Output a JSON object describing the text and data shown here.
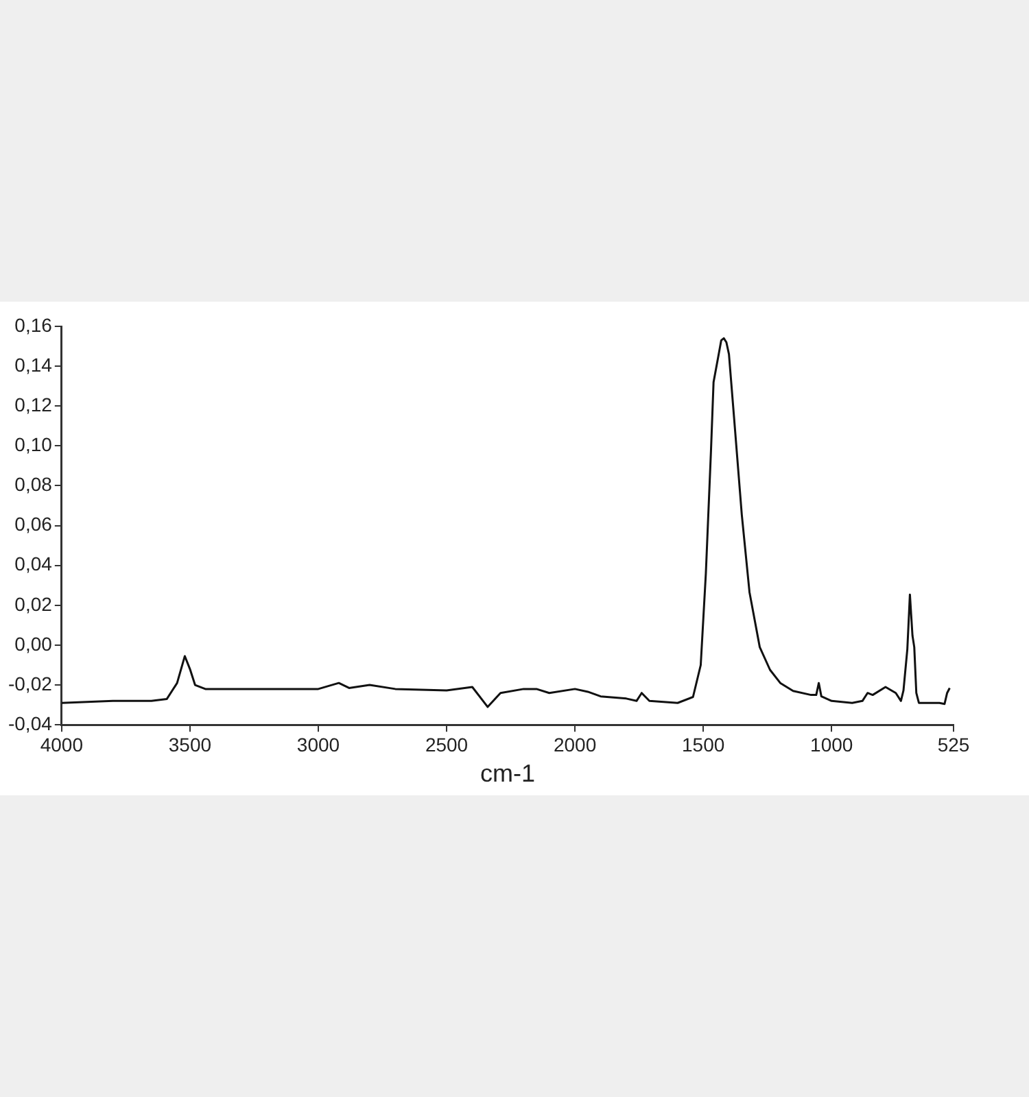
{
  "chart_data": {
    "type": "line",
    "xlabel": "cm-1",
    "grid": false,
    "legend": false,
    "marker": "none",
    "xlim": [
      4000,
      525
    ],
    "xticks": [
      4000,
      3500,
      3000,
      2500,
      2000,
      1500,
      1000,
      525
    ],
    "ylim": [
      -0.04,
      0.16
    ],
    "yticks": [
      {
        "value": -0.04,
        "label": "-0,04"
      },
      {
        "value": -0.02,
        "label": "-0,02"
      },
      {
        "value": 0,
        "label": "0,00"
      },
      {
        "value": 0.02,
        "label": "0,02"
      },
      {
        "value": 0.04,
        "label": "0,04"
      },
      {
        "value": 0.06,
        "label": "0,06"
      },
      {
        "value": 0.08,
        "label": "0,08"
      },
      {
        "value": 0.1,
        "label": "0,10"
      },
      {
        "value": 0.12,
        "label": "0,12"
      },
      {
        "value": 0.14,
        "label": "0,14"
      },
      {
        "value": 0.16,
        "label": "0,16"
      }
    ],
    "x": [
      4000,
      3800,
      3650,
      3590,
      3550,
      3520,
      3500,
      3480,
      3440,
      3000,
      2920,
      2880,
      2800,
      2700,
      2500,
      2400,
      2340,
      2290,
      2200,
      2150,
      2100,
      2000,
      1950,
      1900,
      1800,
      1760,
      1740,
      1710,
      1600,
      1540,
      1510,
      1490,
      1470,
      1460,
      1440,
      1430,
      1420,
      1410,
      1400,
      1380,
      1350,
      1320,
      1280,
      1240,
      1200,
      1150,
      1080,
      1060,
      1050,
      1040,
      1000,
      920,
      880,
      860,
      840,
      790,
      750,
      730,
      720,
      705,
      695,
      690,
      685,
      678,
      670,
      660,
      580,
      560,
      550,
      540
    ],
    "series": [
      {
        "color": "#111111",
        "values": [
          -0.029,
          -0.028,
          -0.028,
          -0.027,
          -0.019,
          -0.0055,
          -0.012,
          -0.02,
          -0.022,
          -0.022,
          -0.019,
          -0.0215,
          -0.02,
          -0.022,
          -0.0227,
          -0.021,
          -0.031,
          -0.024,
          -0.022,
          -0.022,
          -0.024,
          -0.022,
          -0.0234,
          -0.0257,
          -0.0268,
          -0.028,
          -0.024,
          -0.028,
          -0.029,
          -0.026,
          -0.01,
          0.036,
          0.0976,
          0.132,
          0.146,
          0.153,
          0.154,
          0.152,
          0.146,
          0.114,
          0.0655,
          0.0266,
          -0.001,
          -0.0124,
          -0.019,
          -0.023,
          -0.025,
          -0.025,
          -0.019,
          -0.0257,
          -0.028,
          -0.029,
          -0.028,
          -0.024,
          -0.025,
          -0.021,
          -0.024,
          -0.028,
          -0.0227,
          -0.002,
          0.0254,
          0.015,
          0.0048,
          -0.001,
          -0.024,
          -0.029,
          -0.029,
          -0.0295,
          -0.024,
          -0.0215
        ]
      }
    ]
  }
}
